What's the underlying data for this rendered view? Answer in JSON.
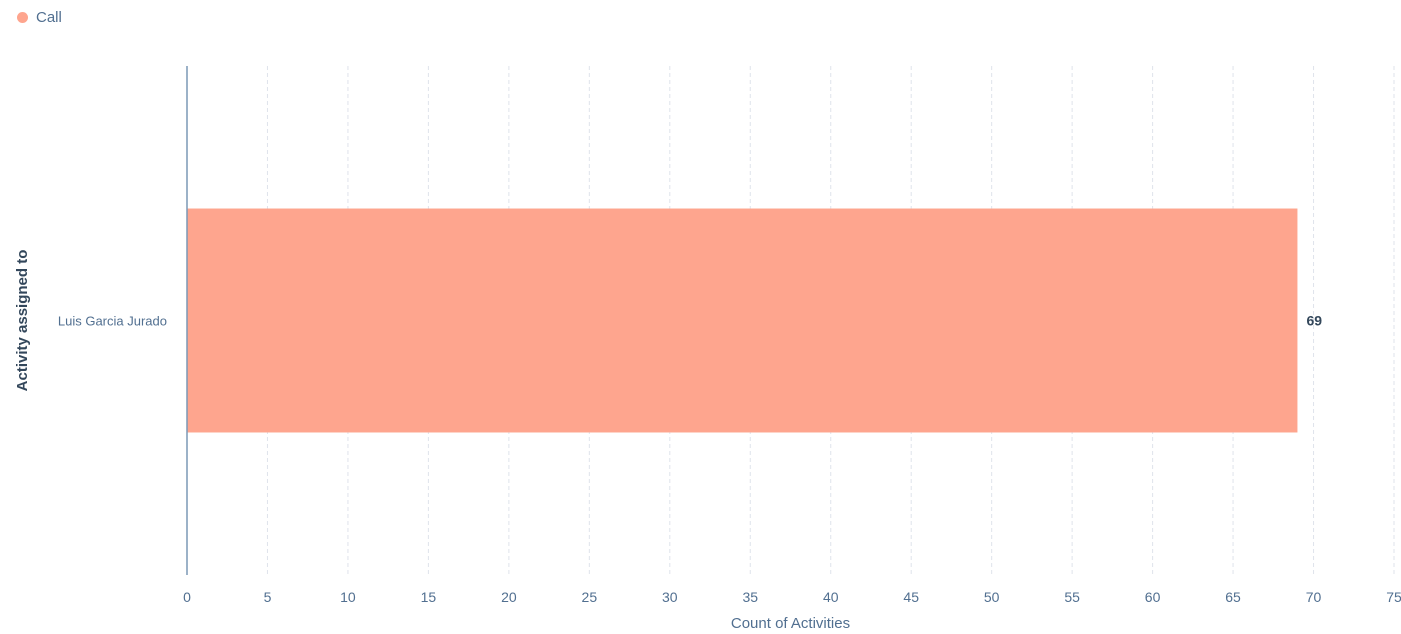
{
  "chart_data": {
    "type": "bar",
    "orientation": "horizontal",
    "categories": [
      "Luis Garcia Jurado"
    ],
    "series": [
      {
        "name": "Call",
        "values": [
          69
        ],
        "color": "#fea58e"
      }
    ],
    "xlabel": "Count of Activities",
    "ylabel": "Activity assigned to",
    "xlim": [
      0,
      75
    ],
    "xticks": [
      0,
      5,
      10,
      15,
      20,
      25,
      30,
      35,
      40,
      45,
      50,
      55,
      60,
      65,
      70,
      75
    ],
    "grid": true,
    "legend": "top-left",
    "data_labels": true
  }
}
